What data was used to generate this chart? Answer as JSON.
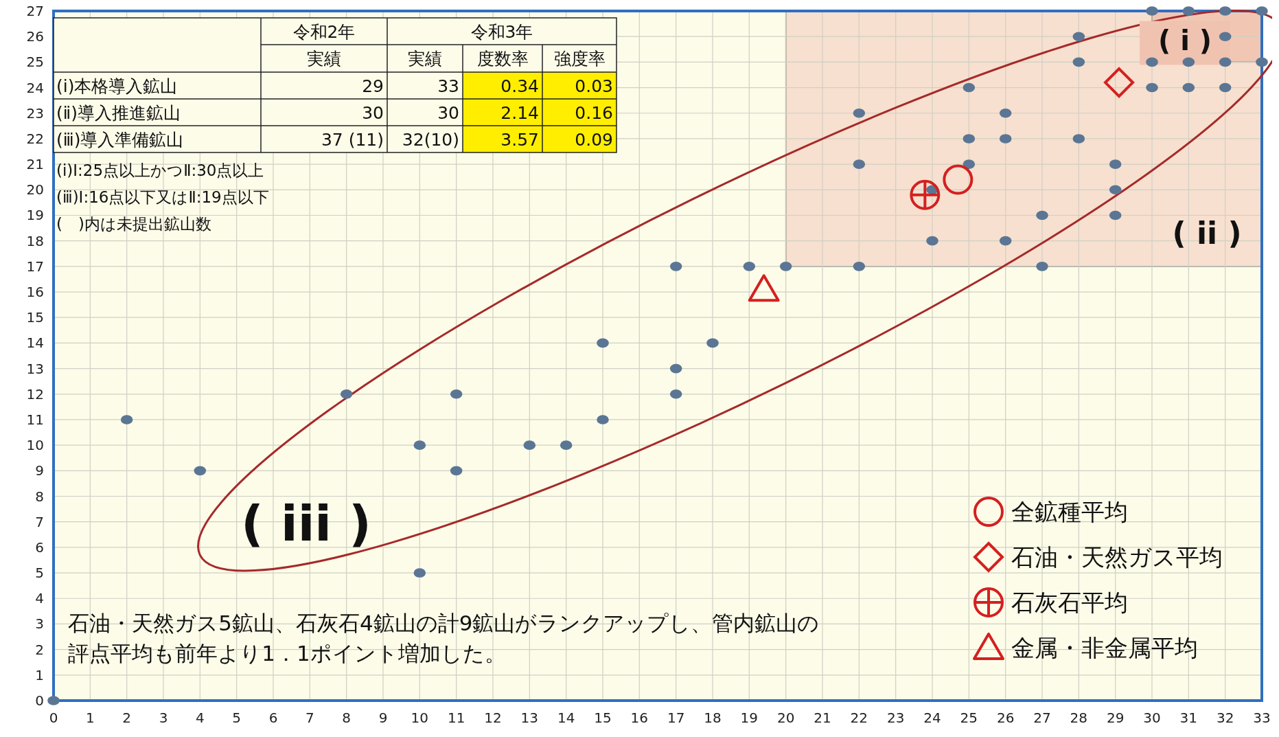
{
  "chart_data": {
    "type": "scatter",
    "xlim": [
      0,
      33
    ],
    "ylim": [
      0,
      27
    ],
    "xticks": [
      0,
      1,
      2,
      3,
      4,
      5,
      6,
      7,
      8,
      9,
      10,
      11,
      12,
      13,
      14,
      15,
      16,
      17,
      18,
      19,
      20,
      21,
      22,
      23,
      24,
      25,
      26,
      27,
      28,
      29,
      30,
      31,
      32,
      33
    ],
    "yticks": [
      0,
      1,
      2,
      3,
      4,
      5,
      6,
      7,
      8,
      9,
      10,
      11,
      12,
      13,
      14,
      15,
      16,
      17,
      18,
      19,
      20,
      21,
      22,
      23,
      24,
      25,
      26,
      27
    ],
    "grid": true,
    "legend": "bottom right",
    "series": [
      {
        "color": "#5b7694",
        "marker": "circle",
        "x": [
          0,
          2,
          4,
          8,
          10,
          10,
          11,
          11,
          13,
          14,
          15,
          15,
          17,
          17,
          17,
          18,
          19,
          20,
          22,
          27,
          24,
          26,
          27,
          29,
          24,
          29,
          22,
          25,
          29,
          25,
          26,
          28,
          22,
          26,
          25,
          30,
          31,
          32,
          28,
          30,
          31,
          32,
          33,
          28,
          32,
          30,
          31,
          32,
          33
        ],
        "values": [
          0,
          11,
          9,
          12,
          10,
          5,
          12,
          9,
          10,
          10,
          14,
          11,
          17,
          13,
          12,
          14,
          17,
          17,
          17,
          17,
          18,
          18,
          19,
          19,
          20,
          20,
          21,
          21,
          21,
          22,
          22,
          22,
          23,
          23,
          24,
          24,
          24,
          24,
          25,
          25,
          25,
          25,
          25,
          26,
          26,
          27,
          27,
          27,
          27
        ]
      },
      {
        "name": "全鉱種平均",
        "color": "#d42020",
        "marker": "circle",
        "x": [
          24.7
        ],
        "values": [
          20.4
        ]
      },
      {
        "name": "石油・天然ガス平均",
        "color": "#d42020",
        "marker": "diamond",
        "x": [
          29.1
        ],
        "values": [
          24.2
        ]
      },
      {
        "name": "石灰石平均",
        "color": "#d42020",
        "marker": "circle",
        "x": [
          23.8
        ],
        "values": [
          19.8
        ]
      },
      {
        "name": "金属・非金属平均",
        "color": "#d42020",
        "marker": "triangle",
        "x": [
          19.4
        ],
        "values": [
          16.1
        ]
      }
    ],
    "annotations": [
      "令和2年",
      "令和3年",
      "実績",
      "実績",
      "度数率",
      "強度率",
      "(ⅰ)本格導入鉱山",
      "29",
      "33",
      "0.34",
      "0.03",
      "(ⅱ)導入推進鉱山",
      "30",
      "30",
      "2.14",
      "0.16",
      "(ⅲ)導入準備鉱山",
      "37 (11)",
      "32(10)",
      "3.57",
      "0.09",
      "(ⅰ)Ⅰ:25点以上かつⅡ:30点以上",
      "(ⅲ)Ⅰ:16点以下又はⅡ:19点以下",
      "(　)内は未提出鉱山数",
      "石油・天然ガス5鉱山、石灰石4鉱山の計9鉱山がランクアップし、管内鉱山の評点平均も前年より1．1ポイント増加した。",
      "( i )",
      "( ii )",
      "( iii )"
    ]
  }
}
